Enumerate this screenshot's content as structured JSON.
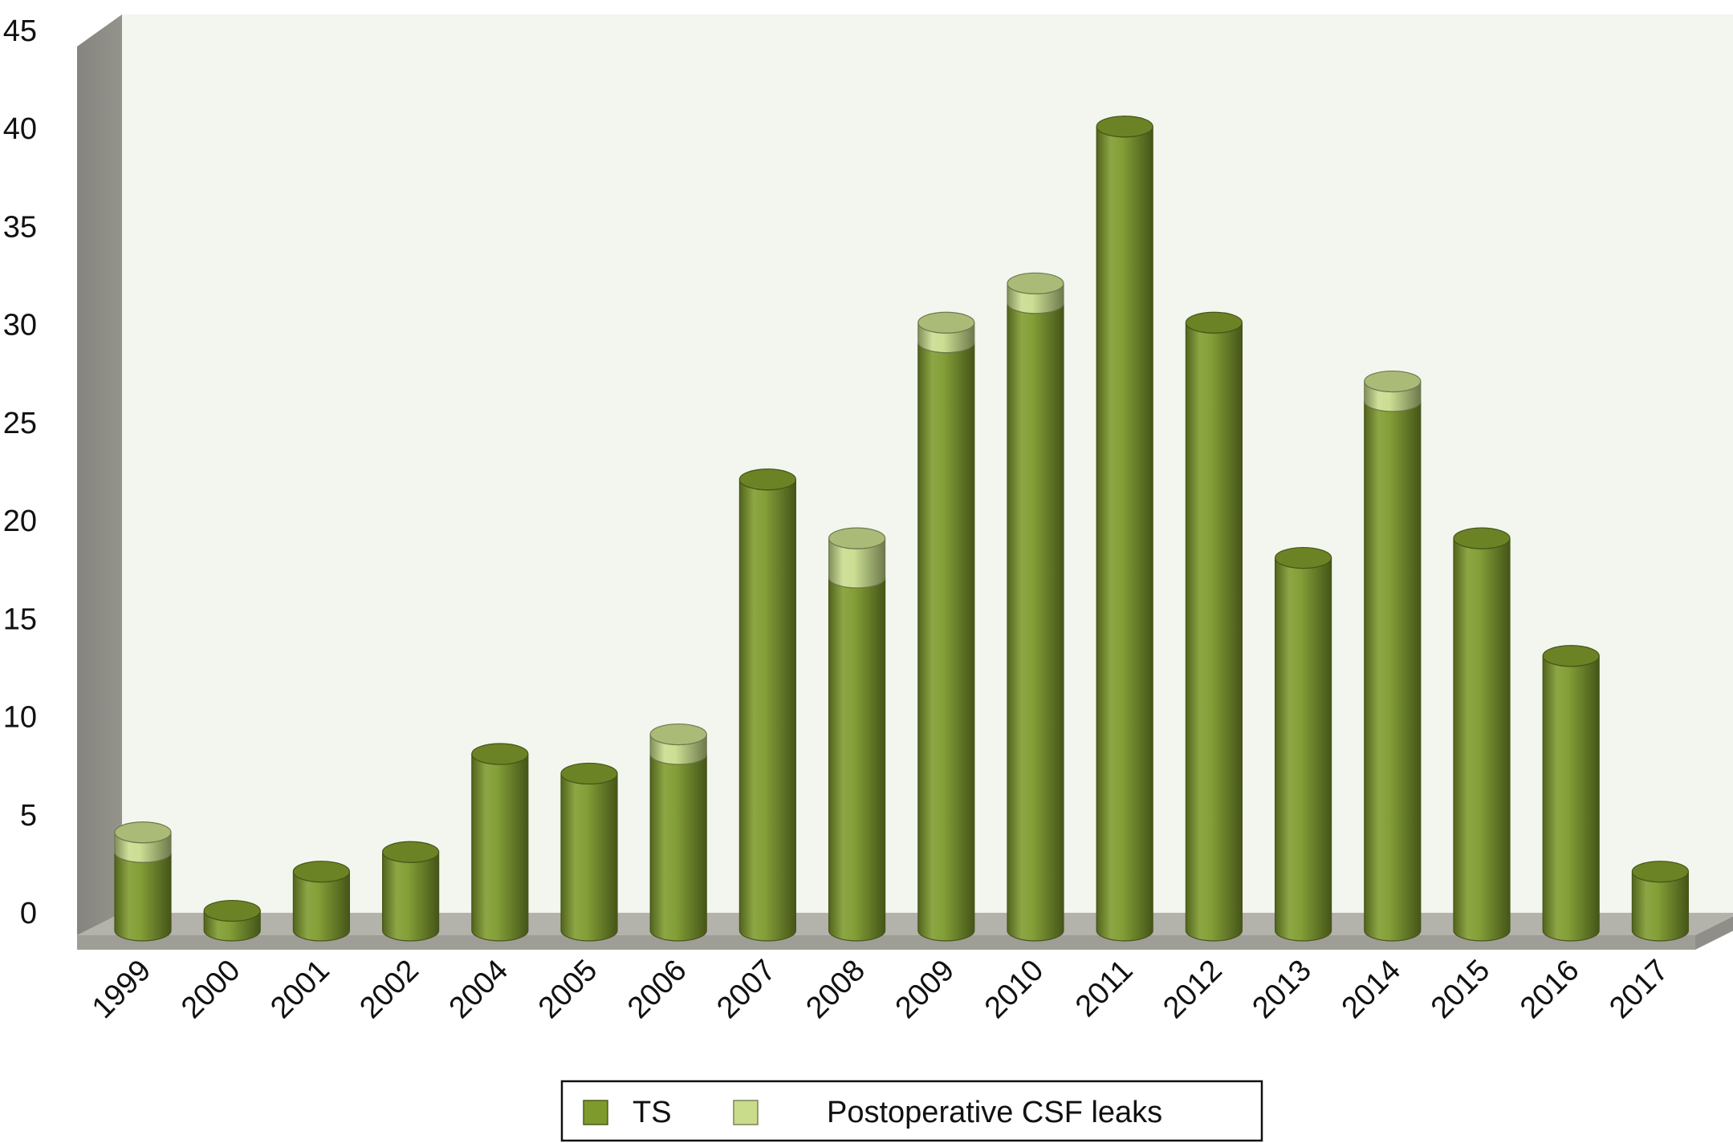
{
  "chart_data": {
    "type": "bar",
    "style": "3d-cylinder-stacked",
    "title": "",
    "xlabel": "",
    "ylabel": "",
    "categories": [
      "1999",
      "2000",
      "2001",
      "2002",
      "2004",
      "2005",
      "2006",
      "2007",
      "2008",
      "2009",
      "2010",
      "2011",
      "2012",
      "2013",
      "2014",
      "2015",
      "2016",
      "2017"
    ],
    "series": [
      {
        "name": "TS",
        "color": "#7e9a2c",
        "values": [
          4,
          1,
          3,
          4,
          9,
          8,
          9,
          23,
          18,
          30,
          32,
          41,
          31,
          19,
          27,
          20,
          14,
          3
        ]
      },
      {
        "name": "Postoperative CSF leaks",
        "color": "#c8dc8c",
        "values": [
          1,
          0,
          0,
          0,
          0,
          0,
          1,
          0,
          2,
          1,
          1,
          0,
          0,
          0,
          1,
          0,
          0,
          0
        ]
      }
    ],
    "ylim": [
      0,
      45
    ],
    "yticks": [
      0,
      5,
      10,
      15,
      20,
      25,
      30,
      35,
      40,
      45
    ],
    "grid": false,
    "legend_position": "bottom-center",
    "colors": {
      "back_wall": "#f3f5ef",
      "side_wall": "#94938c",
      "floor": "#b3b2ab"
    }
  }
}
